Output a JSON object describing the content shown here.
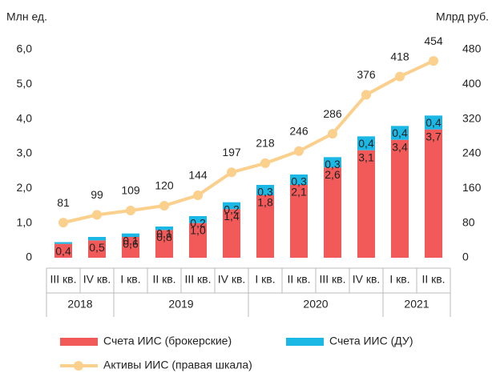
{
  "chart_data": {
    "type": "bar",
    "stacked": true,
    "y_label": "Млн ед.",
    "y2_label": "Млрд руб.",
    "categories": [
      "III кв.",
      "IV кв.",
      "I кв.",
      "II кв.",
      "III кв.",
      "IV кв.",
      "I кв.",
      "II кв.",
      "III кв.",
      "IV кв.",
      "I кв.",
      "II кв."
    ],
    "years": [
      "2018",
      "2018",
      "2019",
      "2019",
      "2019",
      "2019",
      "2020",
      "2020",
      "2020",
      "2020",
      "2021",
      "2021"
    ],
    "series": [
      {
        "name": "Счета ИИС (брокерские)",
        "color": "#f25a5a",
        "type": "bar",
        "values": [
          0.4,
          0.5,
          0.6,
          0.8,
          1.0,
          1.4,
          1.8,
          2.1,
          2.6,
          3.1,
          3.4,
          3.7
        ],
        "value_labels": [
          "0,4",
          "0,5",
          "0,6",
          "0,8",
          "1,0",
          "1,4",
          "1,8",
          "2,1",
          "2,6",
          "3,1",
          "3,4",
          "3,7"
        ]
      },
      {
        "name": "Счета ИИС (ДУ)",
        "color": "#1bb8e6",
        "type": "bar",
        "values": [
          0.05,
          0.1,
          0.1,
          0.1,
          0.2,
          0.2,
          0.3,
          0.3,
          0.3,
          0.4,
          0.4,
          0.4
        ],
        "value_labels": [
          null,
          null,
          "0,1",
          "0,1",
          "0,2",
          "0,2",
          "0,3",
          "0,3",
          "0,3",
          "0,4",
          "0,4",
          "0,4"
        ]
      },
      {
        "name": "Активы ИИС (правая шкала)",
        "color": "#fbcf8c",
        "type": "line",
        "axis": "y2",
        "values": [
          81,
          99,
          109,
          120,
          144,
          197,
          218,
          246,
          286,
          376,
          418,
          454
        ]
      }
    ],
    "ylim": [
      0,
      6
    ],
    "yticks": [
      0,
      {
        "value": 1,
        "label": "1,0"
      },
      {
        "value": 2,
        "label": "2,0"
      },
      {
        "value": 3,
        "label": "3,0"
      },
      {
        "value": 4,
        "label": "4,0"
      },
      {
        "value": 5,
        "label": "5,0"
      },
      {
        "value": 6,
        "label": "6,0"
      }
    ],
    "y2lim": [
      0,
      480
    ],
    "y2ticks": [
      0,
      80,
      160,
      240,
      320,
      400,
      480
    ],
    "legend": "bottom"
  }
}
